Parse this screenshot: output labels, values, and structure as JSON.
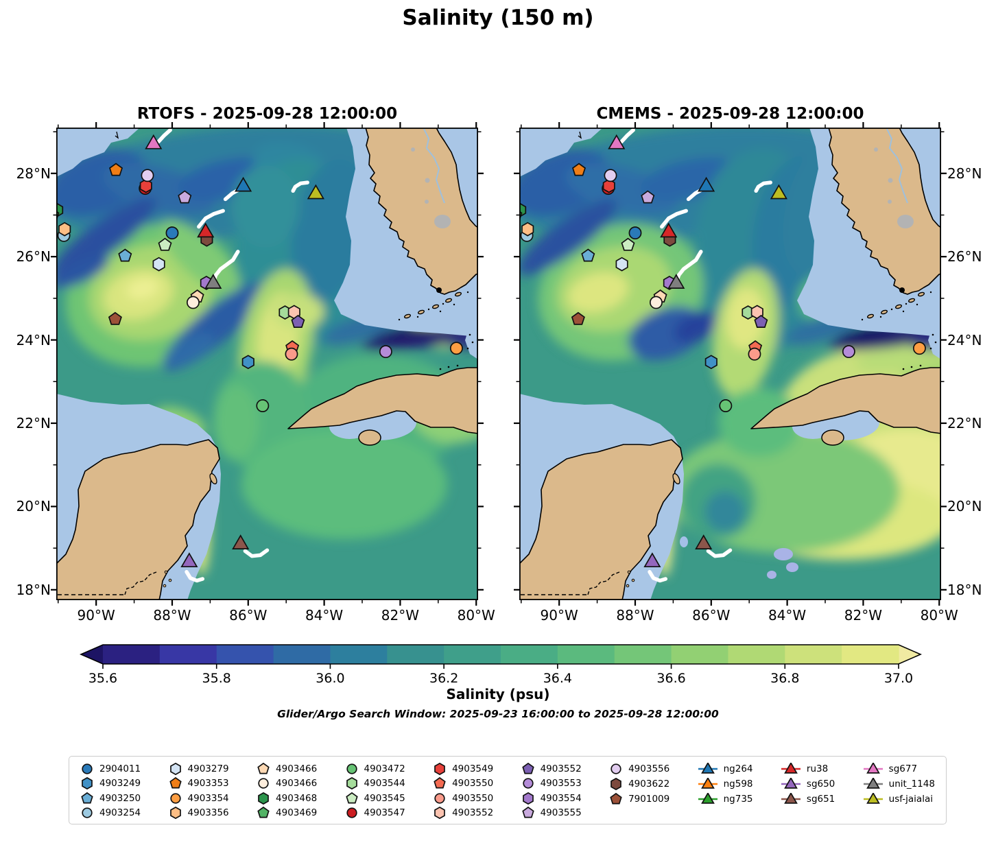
{
  "title": "Salinity (150 m)",
  "panels": [
    {
      "name": "RTOFS",
      "title": "RTOFS - 2025-09-28 12:00:00"
    },
    {
      "name": "CMEMS",
      "title": "CMEMS - 2025-09-28 12:00:00"
    }
  ],
  "subtitle": "Glider/Argo Search Window: 2025-09-23 16:00:00 to 2025-09-28 12:00:00",
  "axes": {
    "lon_ticks": [
      {
        "value": -90,
        "label": "90°W"
      },
      {
        "value": -88,
        "label": "88°W"
      },
      {
        "value": -86,
        "label": "86°W"
      },
      {
        "value": -84,
        "label": "84°W"
      },
      {
        "value": -82,
        "label": "82°W"
      },
      {
        "value": -80,
        "label": "80°W"
      }
    ],
    "lat_ticks": [
      {
        "value": 28,
        "label": "28°N"
      },
      {
        "value": 26,
        "label": "26°N"
      },
      {
        "value": 24,
        "label": "24°N"
      },
      {
        "value": 22,
        "label": "22°N"
      },
      {
        "value": 20,
        "label": "20°N"
      },
      {
        "value": 18,
        "label": "18°N"
      }
    ],
    "lon_minor": [
      -91,
      -89,
      -87,
      -85,
      -83,
      -81
    ],
    "lat_minor": [
      29,
      27,
      25,
      23,
      21,
      19
    ]
  },
  "colorbar": {
    "label": "Salinity (psu)",
    "range": [
      35.6,
      37.0
    ],
    "tick_labels": [
      "35.6",
      "35.8",
      "36.0",
      "36.2",
      "36.4",
      "36.6",
      "36.8",
      "37.0"
    ],
    "segment_colors": [
      "#2b2181",
      "#3837a5",
      "#3553ad",
      "#2f6ba5",
      "#2d7f9e",
      "#37918f",
      "#3f9f8a",
      "#4aad85",
      "#5bba7e",
      "#74c678",
      "#92d073",
      "#b0d974",
      "#cde17b",
      "#e2e882"
    ],
    "under_color": "#1d1464",
    "over_color": "#f0eaa2"
  },
  "chart_data": {
    "type": "map-scatter",
    "map_extent": {
      "lon": [
        -91.05,
        -79.95
      ],
      "lat": [
        17.75,
        29.1
      ]
    },
    "argo_floats": [
      {
        "id": "2904011",
        "shape": "circle",
        "color": "#2a7ab9",
        "lon": -88.0,
        "lat": 26.57
      },
      {
        "id": "4903249",
        "shape": "hexagon",
        "color": "#4191c6",
        "lon": -86.0,
        "lat": 23.47
      },
      {
        "id": "4903250",
        "shape": "pentagon",
        "color": "#6aaed6",
        "lon": -89.24,
        "lat": 26.02
      },
      {
        "id": "4903254",
        "shape": "circle",
        "color": "#9dcae1",
        "lon": -90.85,
        "lat": 26.51
      },
      {
        "id": "4903279",
        "shape": "hexagon",
        "color": "#d4e4f4",
        "lon": -88.35,
        "lat": 25.82
      },
      {
        "id": "4903353",
        "shape": "pentagon",
        "color": "#f07e17",
        "lon": -89.48,
        "lat": 28.08
      },
      {
        "id": "4903354",
        "shape": "circle",
        "color": "#fd9e43",
        "lon": -80.52,
        "lat": 23.8
      },
      {
        "id": "4903356",
        "shape": "hexagon",
        "color": "#fdbe85",
        "lon": -90.83,
        "lat": 26.66
      },
      {
        "id": "4903466",
        "shape": "pentagon",
        "color": "#fdd9b4",
        "lon": -87.34,
        "lat": 25.04
      },
      {
        "id": "4903466",
        "shape": "circle",
        "color": "#feeedd",
        "lon": -87.45,
        "lat": 24.9
      },
      {
        "id": "4903468",
        "shape": "hexagon",
        "color": "#2c944c",
        "lon": -91.03,
        "lat": 27.12
      },
      {
        "id": "4903469",
        "shape": "pentagon",
        "color": "#52b365",
        "lon": -91.15,
        "lat": 27.0
      },
      {
        "id": "4903472",
        "shape": "circle",
        "color": "#67c375",
        "lon": -85.62,
        "lat": 22.42
      },
      {
        "id": "4903544",
        "shape": "hexagon",
        "color": "#a5dc9b",
        "lon": -85.03,
        "lat": 24.66
      },
      {
        "id": "4903545",
        "shape": "pentagon",
        "color": "#cbecc2",
        "lon": -88.19,
        "lat": 26.28
      },
      {
        "id": "4903547",
        "shape": "circle",
        "color": "#cb1d21",
        "lon": -88.71,
        "lat": 27.64
      },
      {
        "id": "4903549",
        "shape": "hexagon",
        "color": "#e8403a",
        "lon": -88.69,
        "lat": 27.7
      },
      {
        "id": "4903550",
        "shape": "pentagon",
        "color": "#f46b52",
        "lon": -84.84,
        "lat": 23.82
      },
      {
        "id": "4903550",
        "shape": "circle",
        "color": "#fa9b8b",
        "lon": -84.86,
        "lat": 23.66
      },
      {
        "id": "4903552",
        "shape": "hexagon",
        "color": "#fcc3b0",
        "lon": -84.79,
        "lat": 24.67
      },
      {
        "id": "4903552",
        "shape": "pentagon",
        "color": "#7c60b3",
        "lon": -84.69,
        "lat": 24.43
      },
      {
        "id": "4903553",
        "shape": "circle",
        "color": "#b48cd8",
        "lon": -82.38,
        "lat": 23.72
      },
      {
        "id": "4903554",
        "shape": "hexagon",
        "color": "#a379cc",
        "lon": -87.1,
        "lat": 25.37
      },
      {
        "id": "4903555",
        "shape": "pentagon",
        "color": "#c9aade",
        "lon": -87.67,
        "lat": 27.42
      },
      {
        "id": "4903556",
        "shape": "circle",
        "color": "#e2cdf0",
        "lon": -88.65,
        "lat": 27.95
      },
      {
        "id": "4903622",
        "shape": "hexagon",
        "color": "#7d4a3e",
        "lon": -87.09,
        "lat": 26.41
      },
      {
        "id": "7901009",
        "shape": "pentagon",
        "color": "#9c5138",
        "lon": -89.5,
        "lat": 24.5
      }
    ],
    "gliders": [
      {
        "id": "ng264",
        "color": "#1f77b4",
        "lon": -86.13,
        "lat": 27.68,
        "tracks": [
          [
            [
              -86.6,
              27.38
            ],
            [
              -86.42,
              27.52
            ],
            [
              -86.22,
              27.62
            ]
          ]
        ]
      },
      {
        "id": "ng598",
        "color": "#ff7f0e",
        "lon": null,
        "lat": null,
        "tracks": []
      },
      {
        "id": "ng735",
        "color": "#2ca02c",
        "lon": null,
        "lat": null,
        "tracks": []
      },
      {
        "id": "ru38",
        "color": "#d62728",
        "lon": -87.12,
        "lat": 26.58,
        "tracks": [
          [
            [
              -87.3,
              26.72
            ],
            [
              -87.12,
              26.92
            ],
            [
              -86.9,
              27.03
            ],
            [
              -86.66,
              27.1
            ]
          ]
        ]
      },
      {
        "id": "sg650",
        "color": "#9467bd",
        "lon": -87.55,
        "lat": 18.66,
        "tracks": [
          [
            [
              -87.62,
              18.43
            ],
            [
              -87.52,
              18.28
            ],
            [
              -87.35,
              18.22
            ],
            [
              -87.2,
              18.26
            ]
          ]
        ]
      },
      {
        "id": "sg651",
        "color": "#8c564b",
        "lon": -86.2,
        "lat": 19.09,
        "tracks": [
          [
            [
              -86.08,
              18.93
            ],
            [
              -85.9,
              18.81
            ],
            [
              -85.68,
              18.83
            ],
            [
              -85.5,
              18.95
            ]
          ]
        ]
      },
      {
        "id": "sg677",
        "color": "#e377c2",
        "lon": -88.49,
        "lat": 28.7,
        "tracks": [
          [
            [
              -88.36,
              28.76
            ],
            [
              -88.22,
              28.9
            ],
            [
              -88.05,
              29.04
            ]
          ]
        ]
      },
      {
        "id": "unit_1148",
        "color": "#7f7f7f",
        "lon": -86.92,
        "lat": 25.35,
        "tracks": [
          [
            [
              -86.27,
              26.12
            ],
            [
              -86.4,
              25.92
            ],
            [
              -86.58,
              25.8
            ],
            [
              -86.73,
              25.7
            ],
            [
              -86.85,
              25.56
            ],
            [
              -86.9,
              25.43
            ]
          ]
        ]
      },
      {
        "id": "usf-jaialai",
        "color": "#bcbd22",
        "lon": -84.22,
        "lat": 27.5,
        "tracks": [
          [
            [
              -84.44,
              27.78
            ],
            [
              -84.62,
              27.76
            ],
            [
              -84.76,
              27.68
            ],
            [
              -84.82,
              27.58
            ]
          ]
        ]
      }
    ]
  }
}
